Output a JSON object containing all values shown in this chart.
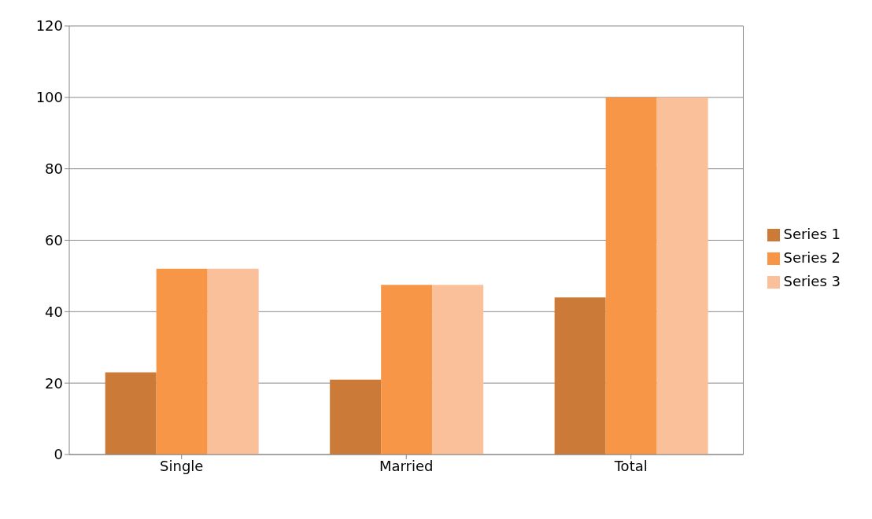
{
  "chart_data": {
    "type": "bar",
    "categories": [
      "Single",
      "Married",
      "Total"
    ],
    "series": [
      {
        "name": "Series 1",
        "color": "#cc7a38",
        "values": [
          23,
          21,
          44
        ]
      },
      {
        "name": "Series 2",
        "color": "#f79646",
        "values": [
          52,
          47.5,
          100
        ]
      },
      {
        "name": "Series 3",
        "color": "#fac09a",
        "values": [
          52,
          47.5,
          100
        ]
      }
    ],
    "ylim": [
      0,
      120
    ],
    "yticks": [
      0,
      20,
      40,
      60,
      80,
      100,
      120
    ],
    "grid": "y",
    "legend": "right"
  }
}
